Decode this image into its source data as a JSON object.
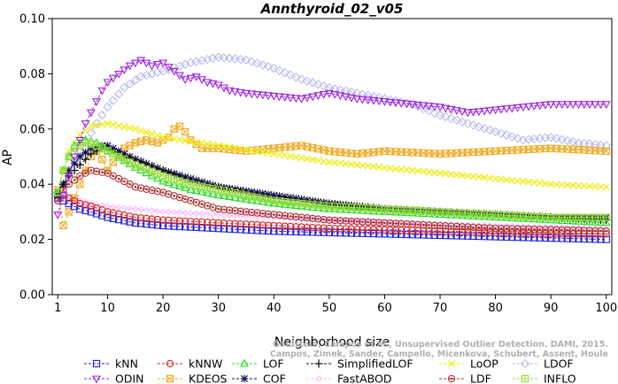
{
  "chart_data": {
    "type": "line",
    "title": "Annthyroid_02_v05",
    "xlabel": "Neighborhood size",
    "ylabel": "AP",
    "xlim": [
      0,
      101
    ],
    "ylim": [
      0.0,
      0.1
    ],
    "xticks": [
      1,
      10,
      20,
      30,
      40,
      50,
      60,
      70,
      80,
      90,
      100
    ],
    "xtick_labels": [
      "1",
      "10",
      "20",
      "30",
      "40",
      "50",
      "60",
      "70",
      "80",
      "90",
      "100"
    ],
    "yticks": [
      0.0,
      0.02,
      0.04,
      0.06,
      0.08,
      0.1
    ],
    "ytick_labels": [
      "0.00",
      "0.02",
      "0.04",
      "0.06",
      "0.08",
      "0.10"
    ],
    "grid": false,
    "legend_position": "bottom",
    "watermark_lines": [
      "Goldstein, Campos et al., Unsupervised Outlier Detection. DAMI, 2015.",
      "Campos, Zimek, Sander, Campello, Micenkova, Schubert, Assent, Houle"
    ],
    "series": [
      {
        "name": "kNN",
        "color": "#2222dd",
        "marker": "square",
        "x": [
          1,
          2,
          3,
          5,
          7,
          10,
          15,
          20,
          30,
          40,
          50,
          60,
          70,
          80,
          90,
          100
        ],
        "y": [
          0.035,
          0.034,
          0.033,
          0.031,
          0.03,
          0.028,
          0.026,
          0.025,
          0.024,
          0.023,
          0.0225,
          0.022,
          0.0215,
          0.021,
          0.0205,
          0.02
        ]
      },
      {
        "name": "kNNW",
        "color": "#dd2222",
        "marker": "circle",
        "x": [
          1,
          2,
          3,
          5,
          7,
          10,
          15,
          20,
          30,
          40,
          50,
          60,
          70,
          80,
          90,
          100
        ],
        "y": [
          0.037,
          0.036,
          0.035,
          0.033,
          0.032,
          0.03,
          0.028,
          0.027,
          0.026,
          0.025,
          0.024,
          0.0235,
          0.023,
          0.0225,
          0.022,
          0.022
        ]
      },
      {
        "name": "LOF",
        "color": "#22dd22",
        "marker": "triangle-up",
        "x": [
          1,
          2,
          3,
          4,
          6,
          8,
          10,
          15,
          20,
          25,
          30,
          40,
          50,
          60,
          70,
          80,
          90,
          100
        ],
        "y": [
          0.037,
          0.045,
          0.05,
          0.054,
          0.056,
          0.055,
          0.052,
          0.046,
          0.041,
          0.038,
          0.036,
          0.033,
          0.031,
          0.03,
          0.029,
          0.028,
          0.027,
          0.026
        ]
      },
      {
        "name": "SimplifiedLOF",
        "color": "#111111",
        "marker": "plus",
        "x": [
          1,
          2,
          3,
          5,
          7,
          9,
          11,
          13,
          15,
          20,
          25,
          30,
          40,
          50,
          60,
          70,
          80,
          90,
          100
        ],
        "y": [
          0.037,
          0.04,
          0.043,
          0.047,
          0.051,
          0.053,
          0.052,
          0.05,
          0.049,
          0.045,
          0.041,
          0.039,
          0.035,
          0.033,
          0.031,
          0.03,
          0.029,
          0.028,
          0.027
        ]
      },
      {
        "name": "LoOP",
        "color": "#eeee22",
        "marker": "x",
        "x": [
          1,
          2,
          3,
          5,
          7,
          10,
          15,
          20,
          30,
          40,
          50,
          60,
          70,
          80,
          90,
          100
        ],
        "y": [
          0.036,
          0.045,
          0.052,
          0.058,
          0.061,
          0.062,
          0.06,
          0.057,
          0.054,
          0.051,
          0.048,
          0.046,
          0.044,
          0.042,
          0.04,
          0.039
        ]
      },
      {
        "name": "LDOF",
        "color": "#bbbbee",
        "marker": "diamond",
        "x": [
          1,
          2,
          3,
          5,
          8,
          10,
          13,
          16,
          20,
          25,
          30,
          35,
          40,
          45,
          50,
          55,
          60,
          65,
          70,
          75,
          80,
          85,
          90,
          95,
          100
        ],
        "y": [
          0.036,
          0.04,
          0.045,
          0.052,
          0.062,
          0.068,
          0.075,
          0.079,
          0.081,
          0.084,
          0.086,
          0.085,
          0.082,
          0.078,
          0.075,
          0.073,
          0.071,
          0.069,
          0.065,
          0.062,
          0.059,
          0.056,
          0.057,
          0.055,
          0.054
        ]
      },
      {
        "name": "ODIN",
        "color": "#9922dd",
        "marker": "triangle-down",
        "x": [
          1,
          2,
          3,
          4,
          5,
          6,
          7,
          8,
          9,
          10,
          12,
          14,
          16,
          18,
          20,
          22,
          24,
          26,
          28,
          30,
          32,
          35,
          40,
          45,
          50,
          55,
          60,
          65,
          70,
          75,
          80,
          85,
          90,
          95,
          100
        ],
        "y": [
          0.029,
          0.036,
          0.043,
          0.05,
          0.056,
          0.062,
          0.066,
          0.07,
          0.074,
          0.077,
          0.08,
          0.083,
          0.085,
          0.083,
          0.084,
          0.081,
          0.078,
          0.079,
          0.077,
          0.076,
          0.074,
          0.073,
          0.072,
          0.071,
          0.073,
          0.071,
          0.07,
          0.069,
          0.068,
          0.066,
          0.067,
          0.068,
          0.069,
          0.069,
          0.069
        ]
      },
      {
        "name": "KDEOS",
        "color": "#eeaa22",
        "marker": "square-x",
        "x": [
          1,
          2,
          3,
          4,
          5,
          6,
          7,
          8,
          9,
          10,
          11,
          13,
          15,
          17,
          19,
          21,
          22,
          23,
          24,
          25,
          27,
          30,
          35,
          40,
          45,
          50,
          55,
          60,
          70,
          80,
          90,
          100
        ],
        "y": [
          0.038,
          0.025,
          0.03,
          0.035,
          0.04,
          0.045,
          0.05,
          0.052,
          0.049,
          0.045,
          0.048,
          0.053,
          0.055,
          0.056,
          0.055,
          0.057,
          0.06,
          0.061,
          0.059,
          0.056,
          0.053,
          0.053,
          0.052,
          0.053,
          0.054,
          0.052,
          0.051,
          0.052,
          0.051,
          0.052,
          0.053,
          0.052
        ]
      },
      {
        "name": "COF",
        "color": "#111155",
        "marker": "asterisk",
        "x": [
          1,
          2,
          3,
          5,
          7,
          9,
          10,
          12,
          15,
          20,
          25,
          30,
          40,
          50,
          60,
          70,
          80,
          90,
          100
        ],
        "y": [
          0.036,
          0.04,
          0.045,
          0.05,
          0.053,
          0.054,
          0.054,
          0.052,
          0.049,
          0.045,
          0.042,
          0.039,
          0.036,
          0.033,
          0.031,
          0.03,
          0.029,
          0.028,
          0.028
        ]
      },
      {
        "name": "FastABOD",
        "color": "#ffbbff",
        "marker": "diamond-small",
        "x": [
          1,
          2,
          3,
          5,
          7,
          10,
          15,
          20,
          30,
          40,
          50,
          60,
          70,
          80,
          90,
          100
        ],
        "y": [
          0.034,
          0.036,
          0.035,
          0.034,
          0.033,
          0.032,
          0.031,
          0.03,
          0.029,
          0.028,
          0.027,
          0.026,
          0.0255,
          0.025,
          0.0245,
          0.024
        ]
      },
      {
        "name": "LDF",
        "color": "#aa3333",
        "marker": "circle-dot",
        "x": [
          1,
          2,
          3,
          5,
          7,
          10,
          12,
          15,
          20,
          25,
          30,
          40,
          50,
          60,
          70,
          80,
          90,
          100
        ],
        "y": [
          0.034,
          0.038,
          0.04,
          0.043,
          0.045,
          0.044,
          0.042,
          0.039,
          0.037,
          0.034,
          0.031,
          0.029,
          0.027,
          0.026,
          0.025,
          0.024,
          0.0235,
          0.023
        ]
      },
      {
        "name": "INFLO",
        "color": "#99dd33",
        "marker": "square-cross",
        "x": [
          1,
          2,
          3,
          4,
          6,
          8,
          10,
          15,
          20,
          25,
          30,
          40,
          50,
          60,
          70,
          80,
          90,
          100
        ],
        "y": [
          0.037,
          0.045,
          0.05,
          0.053,
          0.055,
          0.054,
          0.052,
          0.047,
          0.043,
          0.04,
          0.038,
          0.034,
          0.032,
          0.031,
          0.03,
          0.029,
          0.028,
          0.028
        ]
      }
    ]
  }
}
